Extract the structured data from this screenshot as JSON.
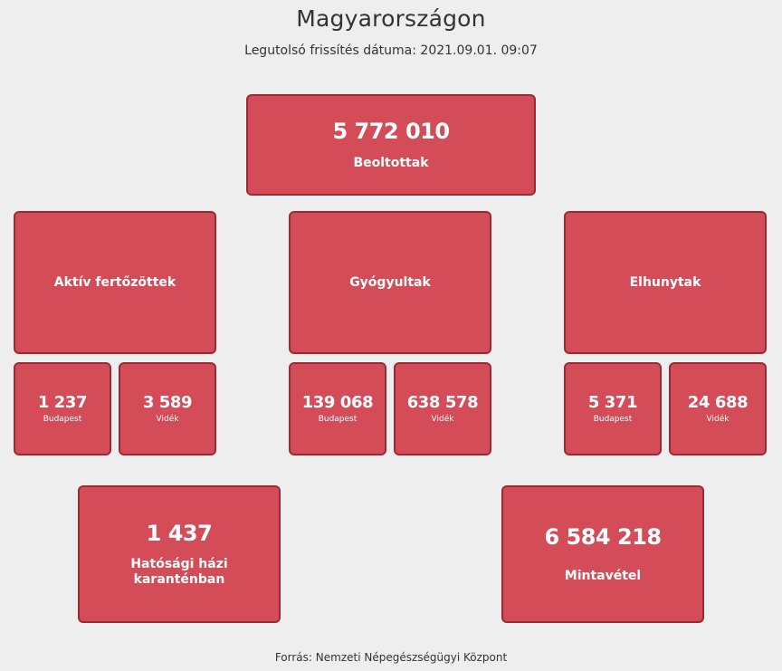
{
  "header": {
    "title": "Magyarországon",
    "last_update": "Legutolsó frissítés dátuma: 2021.09.01. 09:07"
  },
  "vaccinated": {
    "value": "5 772 010",
    "label": "Beoltottak"
  },
  "categories": [
    {
      "label": "Aktív fertőzöttek",
      "budapest": {
        "value": "1 237",
        "label": "Budapest"
      },
      "videk": {
        "value": "3 589",
        "label": "Vidék"
      }
    },
    {
      "label": "Gyógyultak",
      "budapest": {
        "value": "139 068",
        "label": "Budapest"
      },
      "videk": {
        "value": "638 578",
        "label": "Vidék"
      }
    },
    {
      "label": "Elhunytak",
      "budapest": {
        "value": "5 371",
        "label": "Budapest"
      },
      "videk": {
        "value": "24 688",
        "label": "Vidék"
      }
    }
  ],
  "quarantine": {
    "value": "1 437",
    "label_line1": "Hatósági házi",
    "label_line2": "karanténban"
  },
  "sampling": {
    "value": "6 584 218",
    "label": "Mintavétel"
  },
  "footer": {
    "source": "Forrás: Nemzeti Népegészségügyi Központ"
  },
  "colors": {
    "box_fill": "#d44c58",
    "box_border": "#9b2a33",
    "background": "#eeeeee"
  }
}
